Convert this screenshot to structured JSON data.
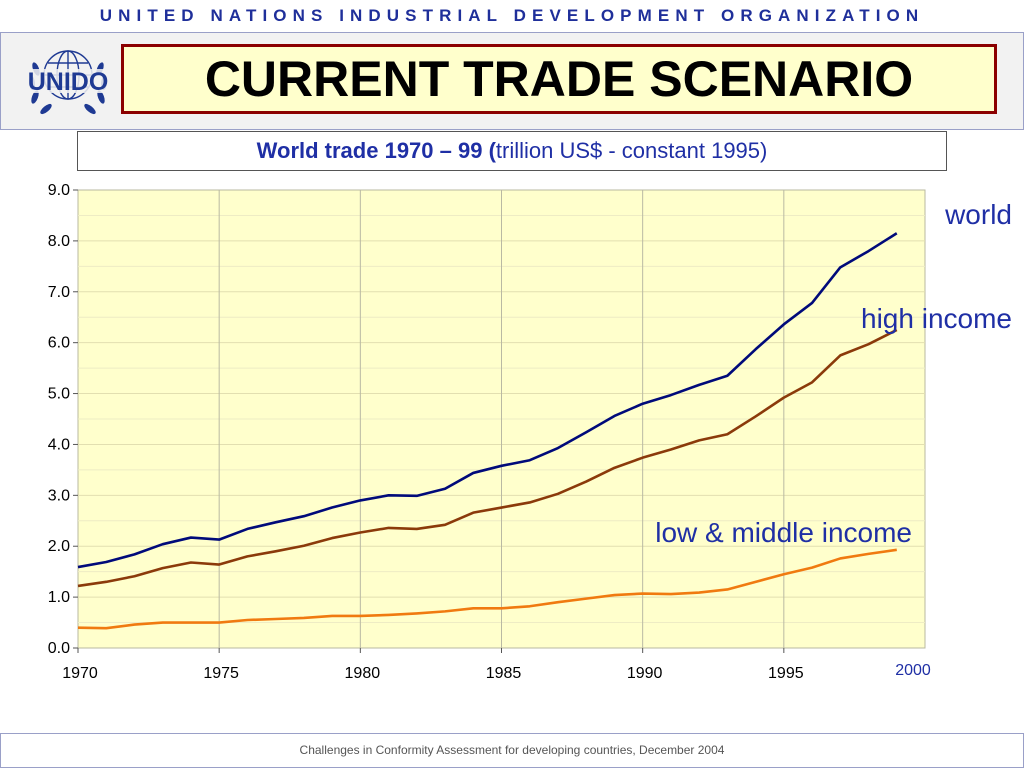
{
  "header": {
    "org_name": "UNITED NATIONS INDUSTRIAL DEVELOPMENT ORGANIZATION",
    "logo_text": "UNIDO",
    "title": "CURRENT TRADE SCENARIO"
  },
  "subtitle": {
    "bold_part": "World trade 1970 – 99  (",
    "normal_part": "trillion US$ - constant 1995)"
  },
  "footer": {
    "text": "Challenges in Conformity Assessment for developing countries, December  2004"
  },
  "colors": {
    "world": "#000a7a",
    "high_income": "#8b3a0a",
    "low_middle_income": "#f07a10",
    "plot_background": "#ffffcc",
    "label_blue": "#1f2fa5"
  },
  "chart_data": {
    "type": "line",
    "x": [
      1970,
      1971,
      1972,
      1973,
      1974,
      1975,
      1976,
      1977,
      1978,
      1979,
      1980,
      1981,
      1982,
      1983,
      1984,
      1985,
      1986,
      1987,
      1988,
      1989,
      1990,
      1991,
      1992,
      1993,
      1994,
      1995,
      1996,
      1997,
      1998,
      1999
    ],
    "series": [
      {
        "name": "world",
        "color_key": "world",
        "values": [
          1.59,
          1.69,
          1.84,
          2.04,
          2.17,
          2.13,
          2.34,
          2.47,
          2.59,
          2.76,
          2.9,
          3.0,
          2.99,
          3.13,
          3.44,
          3.58,
          3.69,
          3.93,
          4.24,
          4.56,
          4.8,
          4.97,
          5.17,
          5.35,
          5.87,
          6.36,
          6.78,
          7.48,
          7.8,
          8.15
        ]
      },
      {
        "name": "high income",
        "color_key": "high_income",
        "values": [
          1.22,
          1.3,
          1.41,
          1.57,
          1.68,
          1.64,
          1.8,
          1.9,
          2.01,
          2.16,
          2.27,
          2.36,
          2.34,
          2.42,
          2.66,
          2.76,
          2.86,
          3.03,
          3.27,
          3.54,
          3.74,
          3.9,
          4.08,
          4.2,
          4.55,
          4.92,
          5.22,
          5.75,
          5.97,
          6.25
        ]
      },
      {
        "name": "low & middle income",
        "color_key": "low_middle_income",
        "values": [
          0.4,
          0.39,
          0.46,
          0.5,
          0.5,
          0.5,
          0.55,
          0.57,
          0.59,
          0.63,
          0.63,
          0.65,
          0.68,
          0.72,
          0.78,
          0.78,
          0.82,
          0.9,
          0.97,
          1.04,
          1.07,
          1.06,
          1.09,
          1.15,
          1.3,
          1.45,
          1.58,
          1.76,
          1.85,
          1.93
        ]
      }
    ],
    "ylim": [
      0,
      9
    ],
    "xlim": [
      1970,
      2000
    ],
    "y_ticks": [
      "0.0",
      "1.0",
      "2.0",
      "3.0",
      "4.0",
      "5.0",
      "6.0",
      "7.0",
      "8.0",
      "9.0"
    ],
    "x_ticks": [
      "1970",
      "1975",
      "1980",
      "1985",
      "1990",
      "1995"
    ],
    "x_end_label": "2000",
    "grid": {
      "vertical": true,
      "horizontal": true
    }
  }
}
